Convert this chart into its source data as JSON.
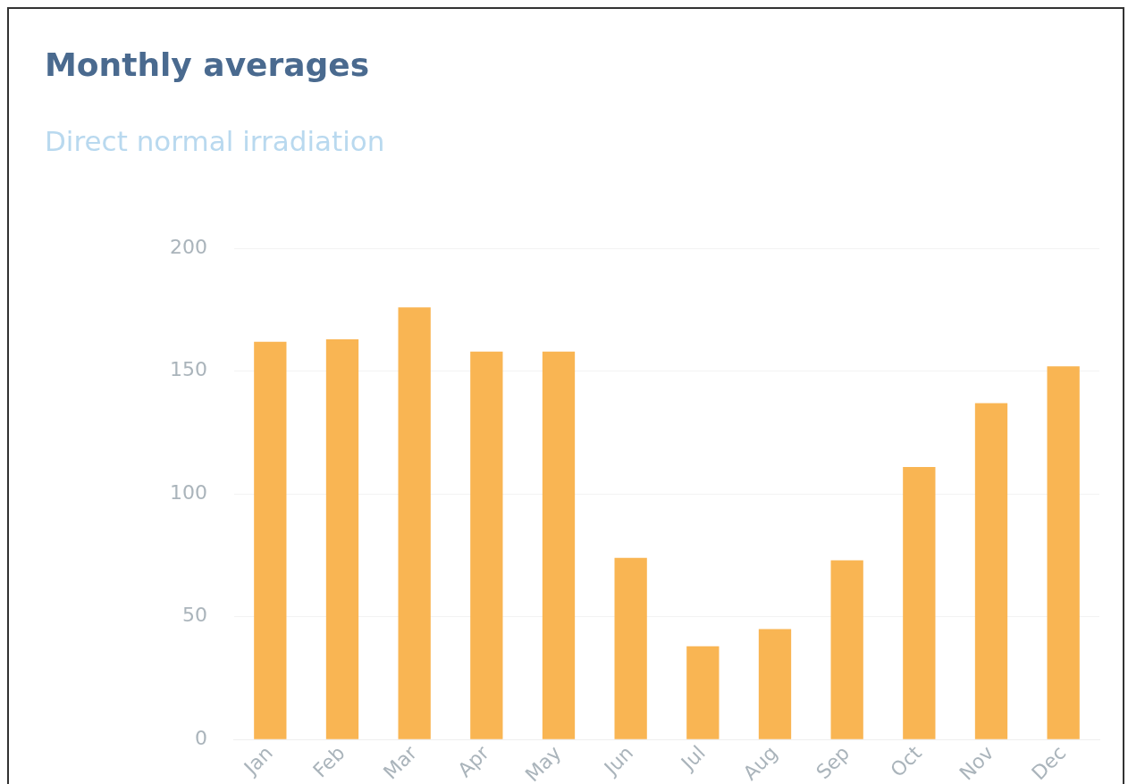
{
  "chart_data": {
    "type": "bar",
    "title": "Monthly averages",
    "subtitle": "Direct normal irradiation",
    "categories": [
      "Jan",
      "Feb",
      "Mar",
      "Apr",
      "May",
      "Jun",
      "Jul",
      "Aug",
      "Sep",
      "Oct",
      "Nov",
      "Dec"
    ],
    "values": [
      162,
      163,
      176,
      158,
      158,
      74,
      38,
      45,
      73,
      111,
      137,
      152
    ],
    "color": "#f9b553",
    "ylim": [
      0,
      200
    ],
    "yticks": [
      0,
      50,
      100,
      150,
      200
    ],
    "grid": "y",
    "legend": false
  }
}
